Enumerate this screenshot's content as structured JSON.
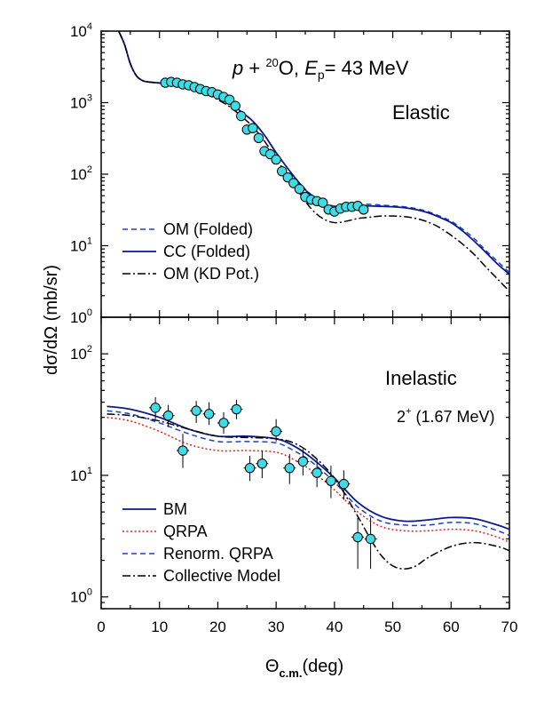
{
  "chart_data": [
    {
      "type": "line",
      "panel": "elastic",
      "title": {
        "pre": "p",
        "plus": " + ",
        "mass": "20",
        "elem": "O, ",
        "E": "E",
        "sub": "p",
        "eq": "= 43 MeV"
      },
      "annotation": "Elastic",
      "xlim": [
        0,
        70
      ],
      "ylim": [
        1,
        10000
      ],
      "yscale": "log",
      "yticks": [
        {
          "base": "10",
          "exp": "0",
          "value": 1
        },
        {
          "base": "10",
          "exp": "1",
          "value": 10
        },
        {
          "base": "10",
          "exp": "2",
          "value": 100
        },
        {
          "base": "10",
          "exp": "3",
          "value": 1000
        },
        {
          "base": "10",
          "exp": "4",
          "value": 10000
        }
      ],
      "legend_position": "bottom-left",
      "series": [
        {
          "name": "OM (Folded)",
          "color": "#1f3fcf",
          "style": "dashed",
          "x": [
            3,
            4,
            5,
            6,
            7,
            8,
            10,
            12,
            14,
            16,
            18,
            20,
            22,
            24,
            26,
            28,
            30,
            32,
            34,
            36,
            38,
            40,
            42,
            44,
            46,
            48,
            50,
            52,
            54,
            56,
            58,
            60,
            62,
            64,
            66,
            68,
            70
          ],
          "y": [
            10000,
            6500,
            3500,
            2400,
            2050,
            1950,
            1880,
            1800,
            1700,
            1550,
            1400,
            1200,
            1000,
            750,
            550,
            350,
            200,
            120,
            75,
            52,
            40,
            36,
            37,
            38,
            38,
            37,
            36,
            35,
            33,
            30,
            26,
            22,
            17,
            12.5,
            8.5,
            6,
            4.2
          ]
        },
        {
          "name": "CC (Folded)",
          "color": "#0a1a8c",
          "style": "solid",
          "x": [
            3,
            4,
            5,
            6,
            7,
            8,
            10,
            12,
            14,
            16,
            18,
            20,
            22,
            24,
            26,
            28,
            30,
            32,
            34,
            36,
            38,
            40,
            42,
            44,
            46,
            48,
            50,
            52,
            54,
            56,
            58,
            60,
            62,
            64,
            66,
            68,
            70
          ],
          "y": [
            10000,
            6500,
            3500,
            2400,
            2050,
            1950,
            1880,
            1800,
            1700,
            1550,
            1400,
            1200,
            1000,
            750,
            550,
            350,
            200,
            120,
            75,
            50,
            38,
            34,
            35,
            36,
            36,
            35.5,
            35,
            34,
            32,
            29,
            25,
            21,
            16,
            11.5,
            8,
            5.5,
            4
          ]
        },
        {
          "name": "OM (KD Pot.)",
          "color": "#000000",
          "style": "dashdot",
          "x": [
            3,
            4,
            5,
            6,
            7,
            8,
            10,
            12,
            14,
            16,
            18,
            20,
            22,
            24,
            26,
            28,
            30,
            32,
            34,
            36,
            38,
            40,
            42,
            44,
            46,
            48,
            50,
            52,
            54,
            56,
            58,
            60,
            62,
            64,
            66,
            68,
            70
          ],
          "y": [
            10000,
            6500,
            3500,
            2400,
            2050,
            1950,
            1880,
            1800,
            1680,
            1500,
            1320,
            1100,
            880,
            650,
            460,
            290,
            165,
            95,
            55,
            33,
            24,
            21,
            22,
            24,
            25,
            26,
            26,
            25.5,
            24,
            21.5,
            18,
            14,
            10.5,
            7.5,
            5,
            3.4,
            2.3
          ]
        },
        {
          "name": "data",
          "color": "#3fdce6",
          "style": "markers",
          "x": [
            11,
            12,
            13,
            14,
            15,
            16,
            17,
            18,
            19,
            20,
            21,
            22,
            23,
            24,
            25,
            26,
            27,
            28,
            29,
            30,
            31,
            32,
            33,
            34,
            35,
            36,
            37,
            38,
            39,
            40,
            41,
            42,
            43,
            44,
            45
          ],
          "y": [
            1900,
            1950,
            1900,
            1800,
            1750,
            1650,
            1550,
            1450,
            1400,
            1300,
            1200,
            1100,
            900,
            650,
            420,
            440,
            320,
            210,
            190,
            160,
            110,
            90,
            75,
            62,
            48,
            44,
            42,
            40,
            32,
            30,
            33,
            35,
            35,
            36,
            32
          ]
        }
      ]
    },
    {
      "type": "line",
      "panel": "inelastic",
      "annotation": "Inelastic",
      "state": {
        "sup": "+",
        "label": "2",
        "energy": " (1.67 MeV)"
      },
      "ylabel": "dσ/dΩ (mb/sr)",
      "xlabel": {
        "main": "Θ",
        "sub": "c.m.",
        "unit": "(deg)"
      },
      "xlim": [
        0,
        70
      ],
      "ylim": [
        0.8,
        200
      ],
      "yscale": "log",
      "xticks": [
        "0",
        "10",
        "20",
        "30",
        "40",
        "50",
        "60",
        "70"
      ],
      "yticks": [
        {
          "base": "10",
          "exp": "0",
          "value": 1
        },
        {
          "base": "10",
          "exp": "1",
          "value": 10
        },
        {
          "base": "10",
          "exp": "2",
          "value": 100
        }
      ],
      "legend_position": "bottom-left",
      "series": [
        {
          "name": "BM",
          "color": "#0a1a8c",
          "style": "solid",
          "x": [
            1,
            5,
            10,
            15,
            20,
            25,
            30,
            33,
            36,
            40,
            44,
            48,
            52,
            56,
            60,
            64,
            68,
            70
          ],
          "y": [
            37,
            35,
            30,
            24,
            21,
            21,
            20,
            17.5,
            14,
            9.5,
            6,
            4.6,
            4.2,
            4.3,
            4.5,
            4.4,
            3.9,
            3.6
          ]
        },
        {
          "name": "QRPA",
          "color": "#e0201c",
          "style": "dotted",
          "x": [
            1,
            5,
            10,
            15,
            20,
            25,
            30,
            33,
            36,
            40,
            44,
            48,
            52,
            56,
            60,
            64,
            68,
            70
          ],
          "y": [
            30,
            28,
            23,
            18,
            16,
            16,
            15.5,
            13.5,
            11,
            7.6,
            5,
            3.8,
            3.5,
            3.5,
            3.6,
            3.5,
            3.1,
            2.8
          ]
        },
        {
          "name": "Renorm. QRPA",
          "color": "#1f3fcf",
          "style": "dashed",
          "x": [
            1,
            5,
            10,
            15,
            20,
            25,
            30,
            33,
            36,
            40,
            44,
            48,
            52,
            56,
            60,
            64,
            68,
            70
          ],
          "y": [
            34,
            32,
            27,
            22,
            19,
            19,
            18.5,
            16,
            13,
            8.8,
            5.5,
            4.2,
            3.9,
            3.9,
            4.1,
            4,
            3.5,
            3.2
          ]
        },
        {
          "name": "Collective Model",
          "color": "#000000",
          "style": "dashdot",
          "x": [
            1,
            5,
            10,
            15,
            20,
            25,
            30,
            33,
            36,
            40,
            44,
            46,
            48,
            50,
            52,
            54,
            56,
            60,
            64,
            68,
            70
          ],
          "y": [
            32,
            31,
            28,
            24,
            21,
            20.5,
            20,
            18.5,
            15,
            9.5,
            4.6,
            3.1,
            2.2,
            1.8,
            1.7,
            1.8,
            2.1,
            2.6,
            2.8,
            2.6,
            2.4
          ]
        },
        {
          "name": "data",
          "color": "#3fdce6",
          "style": "markers",
          "x": [
            9.3,
            11.5,
            14,
            16.3,
            18.5,
            21,
            23.2,
            25.5,
            27.6,
            30,
            32.3,
            34.6,
            37,
            39.4,
            41.6,
            44,
            46.2
          ],
          "y": [
            36,
            31,
            16,
            34,
            32,
            27,
            35,
            11.5,
            12.5,
            23,
            11.5,
            13,
            10.5,
            9,
            8.5,
            3.1,
            3.0
          ],
          "yerr_low": [
            29,
            25,
            11.5,
            27,
            26,
            22,
            29,
            9,
            9.5,
            19,
            8.5,
            10,
            8,
            6.5,
            6.3,
            1.7,
            1.7
          ],
          "yerr_high": [
            44,
            38,
            22,
            41,
            40,
            33,
            42,
            14.5,
            16,
            29,
            15,
            16.5,
            13.5,
            12,
            11,
            4.5,
            4.5
          ]
        }
      ]
    }
  ]
}
